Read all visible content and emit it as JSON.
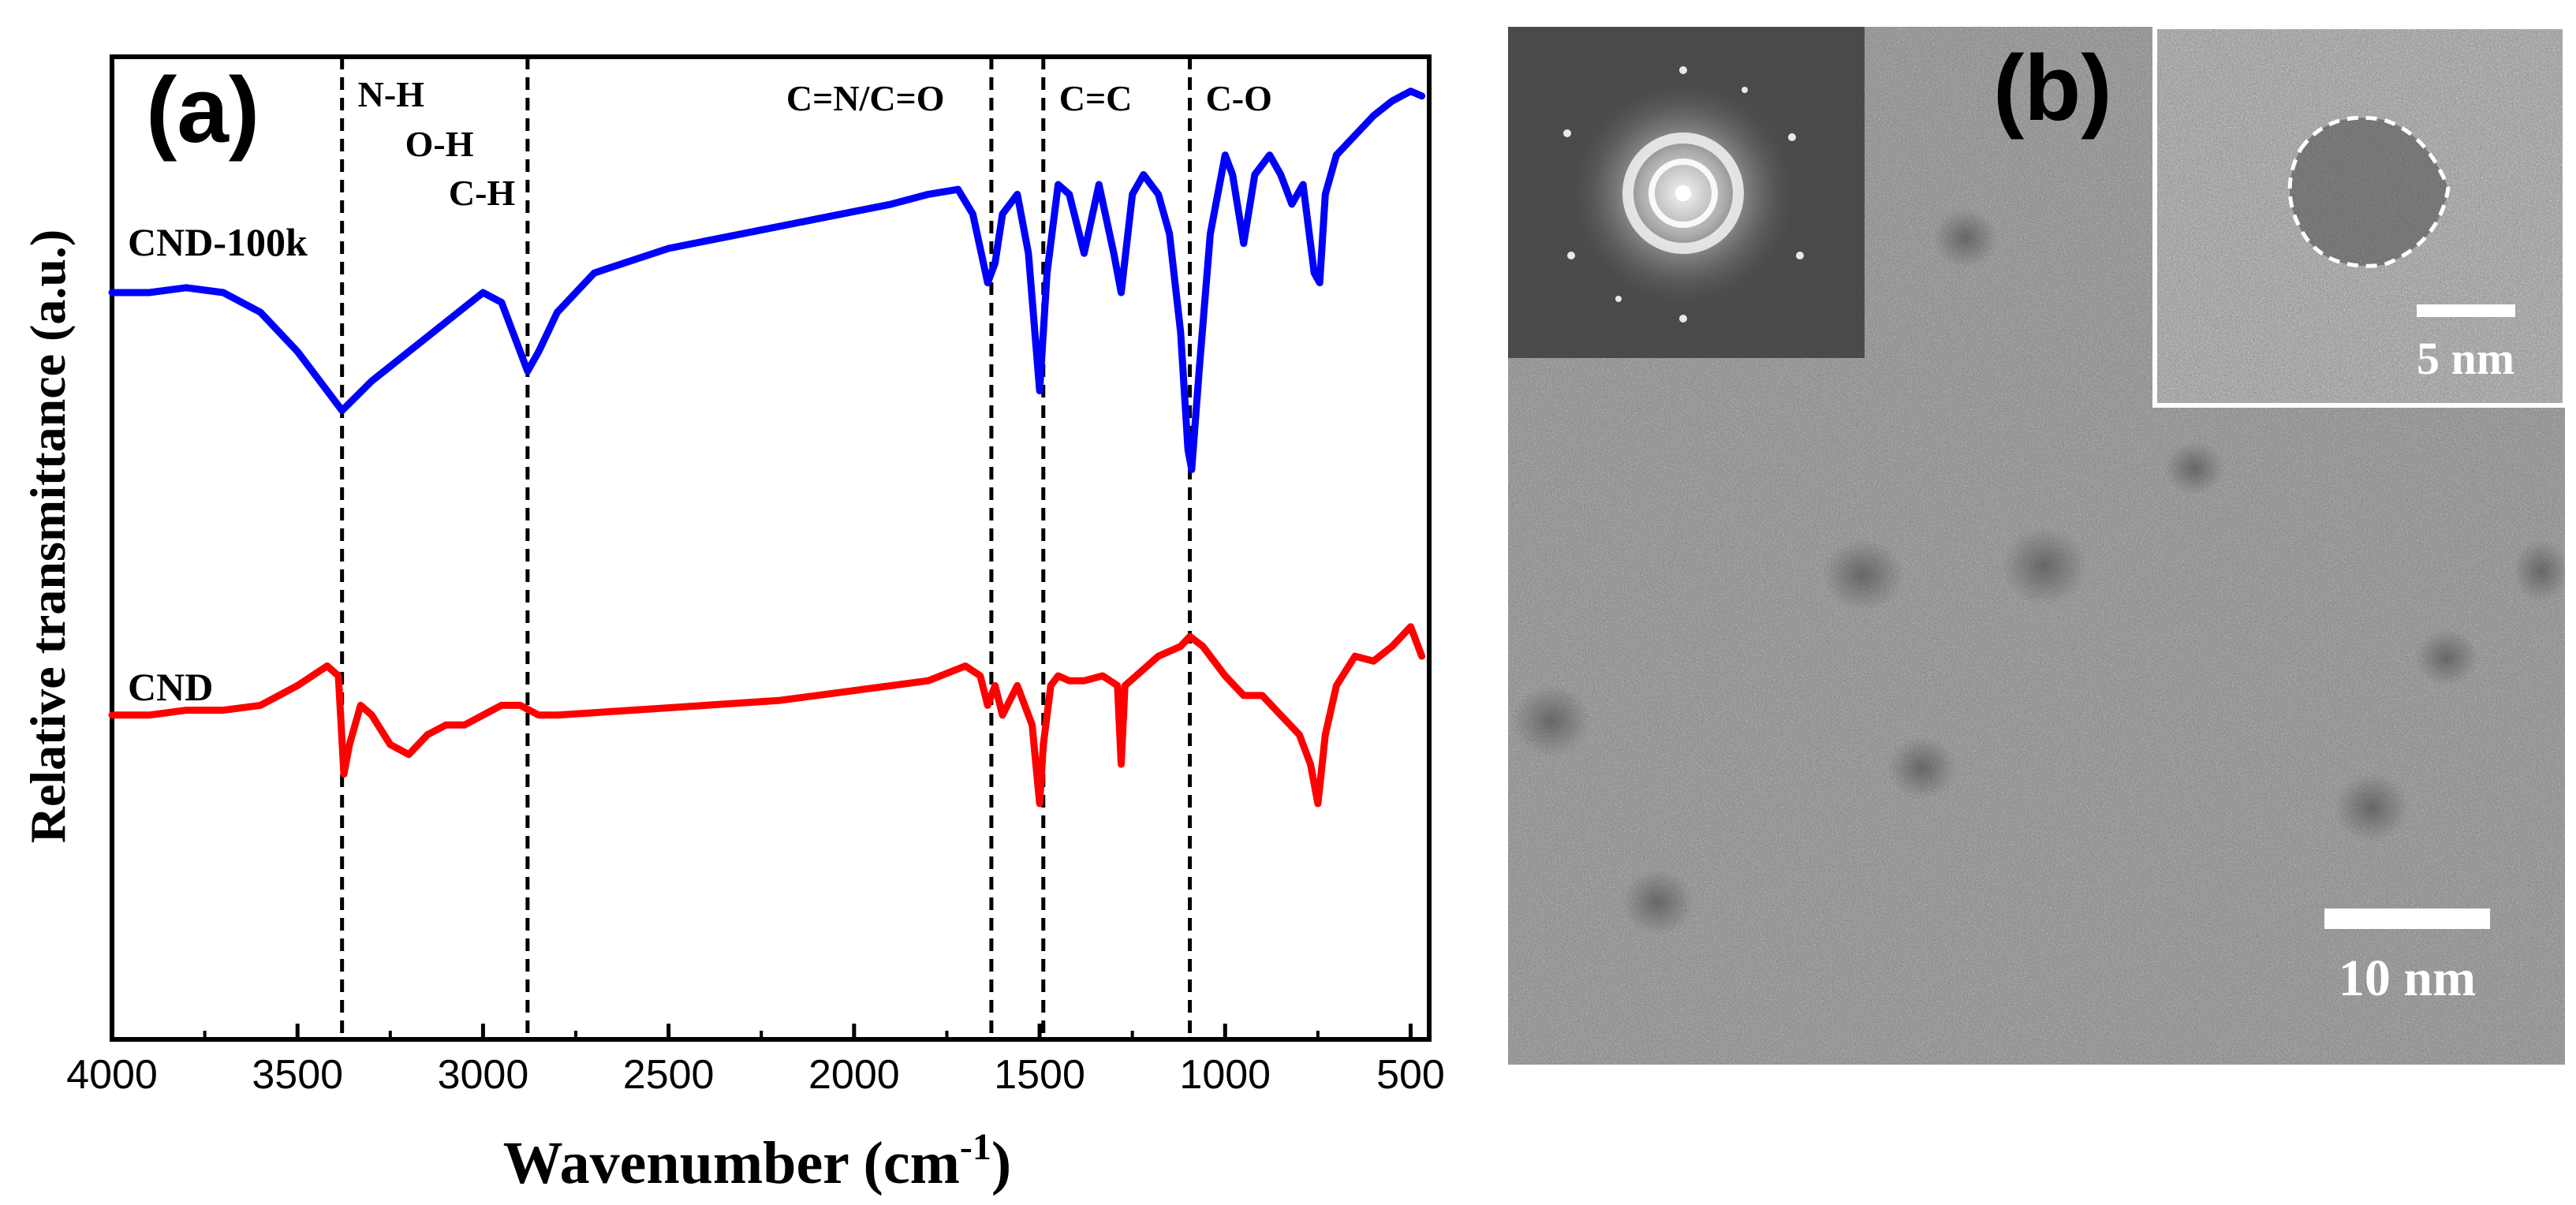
{
  "panel_a": {
    "label": "(a)",
    "ylabel": "Relative transmittance (a.u.)",
    "xlabel_main": "Wavenumber (cm",
    "xlabel_sup": "-1",
    "xlabel_end": ")",
    "colors": {
      "cnd100k": "#0000ff",
      "cnd": "#ff0000",
      "axis": "#000000"
    }
  },
  "chart_data": {
    "type": "line",
    "title": "",
    "xlabel": "Wavenumber (cm-1)",
    "ylabel": "Relative transmittance (a.u.)",
    "xlim": [
      4000,
      450
    ],
    "ylim": [
      0,
      1
    ],
    "x_reversed": true,
    "y_ticks_shown": false,
    "xticks": [
      4000,
      3500,
      3000,
      2500,
      2000,
      1500,
      1000,
      500
    ],
    "xtick_labels": [
      "4000",
      "3500",
      "3000",
      "2500",
      "2000",
      "1500",
      "1000",
      "500"
    ],
    "vlines": [
      {
        "x": 3380,
        "label": "N-H"
      },
      {
        "x": 3380,
        "label": "O-H"
      },
      {
        "x": 2880,
        "label": "C-H"
      },
      {
        "x": 1630,
        "label": "C=N/C=O"
      },
      {
        "x": 1490,
        "label": "C=C"
      },
      {
        "x": 1095,
        "label": "C-O"
      }
    ],
    "band_labels": [
      "N-H",
      "O-H",
      "C-H",
      "C=N/C=O",
      "C=C",
      "C-O"
    ],
    "series": [
      {
        "name": "CND-100k",
        "color": "#0000ff",
        "x": [
          4000,
          3900,
          3800,
          3700,
          3600,
          3500,
          3420,
          3380,
          3300,
          3200,
          3100,
          3000,
          2950,
          2900,
          2880,
          2850,
          2800,
          2700,
          2500,
          2300,
          2100,
          1900,
          1800,
          1720,
          1680,
          1640,
          1620,
          1600,
          1560,
          1530,
          1500,
          1480,
          1450,
          1420,
          1380,
          1340,
          1300,
          1280,
          1250,
          1220,
          1180,
          1150,
          1120,
          1100,
          1090,
          1070,
          1040,
          1000,
          980,
          950,
          920,
          880,
          850,
          820,
          790,
          760,
          745,
          730,
          700,
          650,
          600,
          550,
          500,
          470
        ],
        "y": [
          0.76,
          0.76,
          0.765,
          0.76,
          0.74,
          0.7,
          0.66,
          0.64,
          0.67,
          0.7,
          0.73,
          0.76,
          0.75,
          0.7,
          0.68,
          0.7,
          0.74,
          0.78,
          0.805,
          0.82,
          0.835,
          0.85,
          0.86,
          0.865,
          0.84,
          0.77,
          0.79,
          0.84,
          0.86,
          0.8,
          0.66,
          0.78,
          0.87,
          0.86,
          0.8,
          0.87,
          0.8,
          0.76,
          0.86,
          0.88,
          0.86,
          0.82,
          0.72,
          0.6,
          0.58,
          0.68,
          0.82,
          0.9,
          0.88,
          0.81,
          0.88,
          0.9,
          0.88,
          0.85,
          0.87,
          0.78,
          0.77,
          0.86,
          0.9,
          0.92,
          0.94,
          0.955,
          0.965,
          0.96
        ]
      },
      {
        "name": "CND",
        "color": "#ff0000",
        "x": [
          4000,
          3900,
          3800,
          3700,
          3600,
          3500,
          3420,
          3390,
          3375,
          3360,
          3330,
          3300,
          3250,
          3200,
          3150,
          3100,
          3050,
          3000,
          2950,
          2900,
          2850,
          2800,
          2600,
          2400,
          2200,
          2000,
          1800,
          1700,
          1660,
          1640,
          1620,
          1600,
          1560,
          1520,
          1500,
          1490,
          1470,
          1450,
          1420,
          1380,
          1330,
          1290,
          1280,
          1270,
          1240,
          1180,
          1120,
          1095,
          1060,
          1000,
          950,
          900,
          850,
          800,
          770,
          750,
          730,
          700,
          650,
          600,
          550,
          500,
          470
        ],
        "y": [
          0.33,
          0.33,
          0.335,
          0.335,
          0.34,
          0.36,
          0.38,
          0.37,
          0.27,
          0.3,
          0.34,
          0.33,
          0.3,
          0.29,
          0.31,
          0.32,
          0.32,
          0.33,
          0.34,
          0.34,
          0.33,
          0.33,
          0.335,
          0.34,
          0.345,
          0.355,
          0.365,
          0.38,
          0.37,
          0.34,
          0.36,
          0.33,
          0.36,
          0.32,
          0.24,
          0.3,
          0.36,
          0.37,
          0.365,
          0.365,
          0.37,
          0.36,
          0.28,
          0.36,
          0.37,
          0.39,
          0.4,
          0.41,
          0.4,
          0.37,
          0.35,
          0.35,
          0.33,
          0.31,
          0.28,
          0.24,
          0.31,
          0.36,
          0.39,
          0.385,
          0.4,
          0.42,
          0.39
        ]
      }
    ]
  },
  "panel_b": {
    "label": "(b)",
    "scale_main": "10 nm",
    "scale_inset": "5 nm",
    "colors": {
      "tem_bg": "#8a8a8a",
      "fft_bg": "#4a4a4a"
    }
  }
}
